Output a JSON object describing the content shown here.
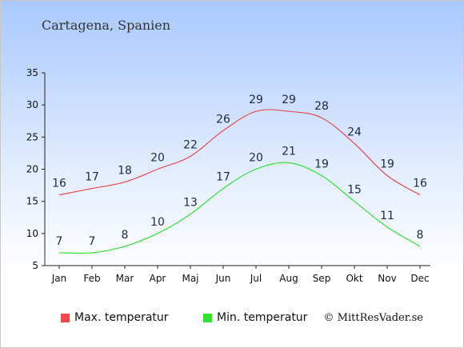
{
  "header": {
    "title": "Cartagena, Spanien"
  },
  "footer": {
    "credit": "© MittResVader.se"
  },
  "chart_data": {
    "type": "line",
    "categories": [
      "Jan",
      "Feb",
      "Mar",
      "Apr",
      "Maj",
      "Jun",
      "Jul",
      "Aug",
      "Sep",
      "Okt",
      "Nov",
      "Dec"
    ],
    "series": [
      {
        "name": "Max. temperatur",
        "color": "#e84b4b",
        "values": [
          16,
          17,
          18,
          20,
          22,
          26,
          29,
          29,
          28,
          24,
          19,
          16
        ]
      },
      {
        "name": "Min. temperatur",
        "color": "#33e033",
        "values": [
          7,
          7,
          8,
          10,
          13,
          17,
          20,
          21,
          19,
          15,
          11,
          8
        ]
      }
    ],
    "ylim": [
      5,
      35
    ],
    "yticks": [
      5,
      10,
      15,
      20,
      25,
      30,
      35
    ],
    "grid": false,
    "legend_position": "bottom-left"
  }
}
